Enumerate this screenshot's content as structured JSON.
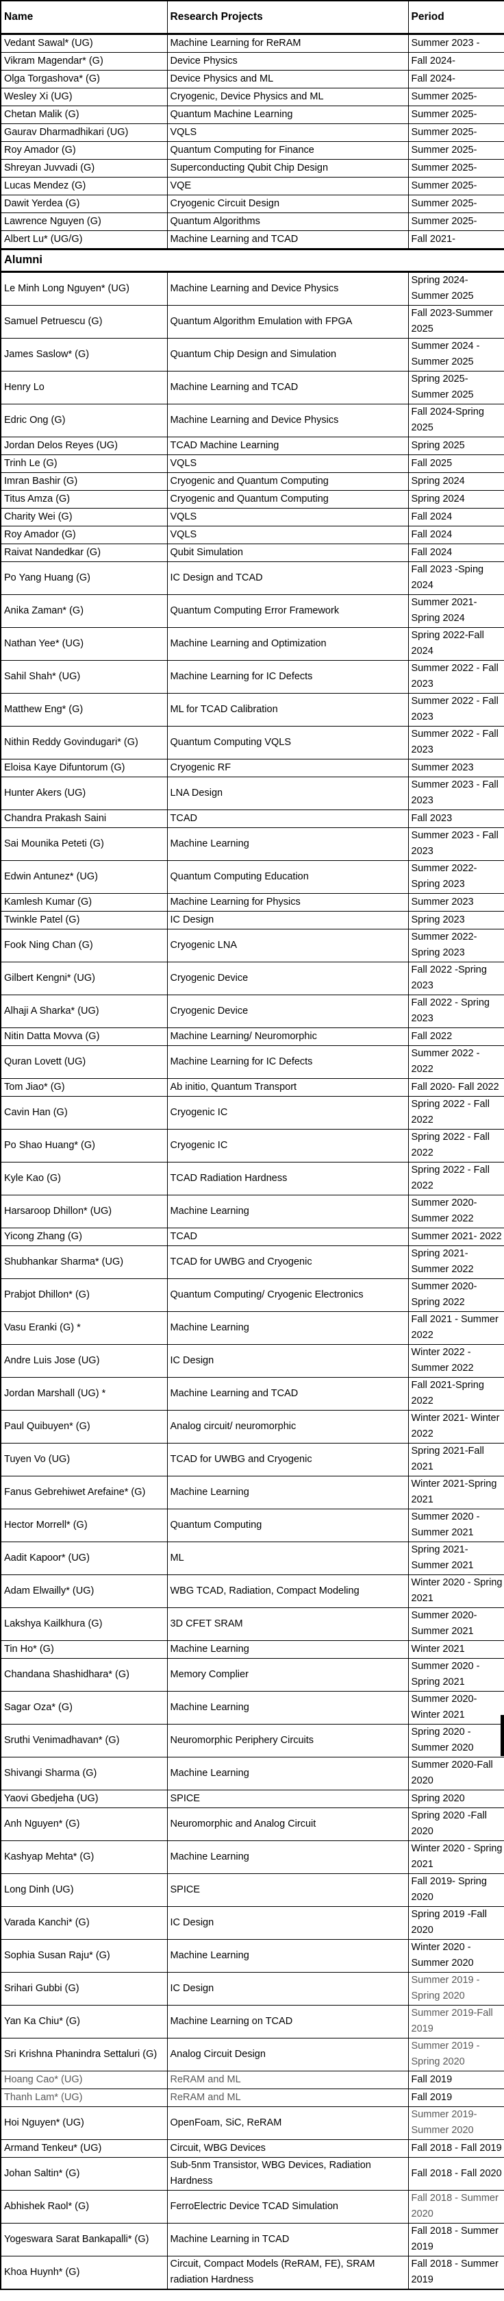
{
  "colors": {
    "text": "#000000",
    "muted_text": "#595959",
    "border": "#000000",
    "background": "#ffffff"
  },
  "table": {
    "headers": [
      "Name",
      "Research Projects",
      "Period"
    ],
    "section_label": "Alumni",
    "current_members": [
      {
        "name": "Vedant Sawal* (UG)",
        "project": "Machine Learning for ReRAM",
        "period": "Summer 2023 -"
      },
      {
        "name": "Vikram Magendar* (G)",
        "project": "Device Physics",
        "period": "Fall 2024-"
      },
      {
        "name": "Olga Torgashova* (G)",
        "project": "Device Physics and ML",
        "period": "Fall 2024-"
      },
      {
        "name": "Wesley Xi (UG)",
        "project": "Cryogenic, Device Physics and ML",
        "period": "Summer 2025-"
      },
      {
        "name": "Chetan Malik (G)",
        "project": "Quantum Machine Learning",
        "period": "Summer 2025-"
      },
      {
        "name": "Gaurav Dharmadhikari (UG)",
        "project": "VQLS",
        "period": "Summer 2025-"
      },
      {
        "name": "Roy Amador (G)",
        "project": "Quantum Computing for Finance",
        "period": "Summer 2025-"
      },
      {
        "name": "Shreyan Juvvadi (G)",
        "project": "Superconducting Qubit Chip Design",
        "period": "Summer 2025-"
      },
      {
        "name": "Lucas Mendez (G)",
        "project": "VQE",
        "period": "Summer 2025-"
      },
      {
        "name": "Dawit Yerdea (G)",
        "project": "Cryogenic Circuit Design",
        "period": "Summer 2025-"
      },
      {
        "name": "Lawrence Nguyen (G)",
        "project": "Quantum Algorithms",
        "period": "Summer 2025-"
      },
      {
        "name": "Albert Lu* (UG/G)",
        "project": "Machine Learning and TCAD",
        "period": "Fall 2021-"
      }
    ],
    "alumni": [
      {
        "name": "Le Minh Long Nguyen* (UG)",
        "project": "Machine Learning and Device Physics",
        "period": "Spring 2024-Summer 2025"
      },
      {
        "name": "Samuel Petruescu (G)",
        "project": "Quantum Algorithm Emulation with FPGA",
        "period": "Fall 2023-Summer 2025"
      },
      {
        "name": "James Saslow* (G)",
        "project": "Quantum Chip Design and Simulation",
        "period": "Summer 2024 - Summer 2025"
      },
      {
        "name": "Henry Lo",
        "project": "Machine Learning and TCAD",
        "period": "Spring 2025- Summer 2025"
      },
      {
        "name": "Edric Ong (G)",
        "project": "Machine Learning and Device Physics",
        "period": "Fall 2024-Spring 2025"
      },
      {
        "name": "Jordan Delos Reyes (UG)",
        "project": "TCAD Machine Learning",
        "period": "Spring 2025"
      },
      {
        "name": "Trinh Le (G)",
        "project": "VQLS",
        "period": "Fall 2025"
      },
      {
        "name": "Imran Bashir (G)",
        "project": "Cryogenic and Quantum Computing",
        "period": "Spring 2024"
      },
      {
        "name": "Titus Amza (G)",
        "project": "Cryogenic and Quantum Computing",
        "period": "Spring 2024"
      },
      {
        "name": "Charity Wei (G)",
        "project": "VQLS",
        "period": "Fall 2024"
      },
      {
        "name": "Roy Amador (G)",
        "project": "VQLS",
        "period": "Fall 2024"
      },
      {
        "name": "Raivat Nandedkar (G)",
        "project": "Qubit Simulation",
        "period": "Fall 2024"
      },
      {
        "name": "Po Yang Huang (G)",
        "project": "IC Design and TCAD",
        "period": "Fall 2023 -Sping 2024"
      },
      {
        "name": "Anika Zaman* (G)",
        "project": "Quantum Computing Error Framework",
        "period": "Summer 2021- Spring 2024"
      },
      {
        "name": "Nathan Yee* (UG)",
        "project": "Machine Learning and Optimization",
        "period": "Spring 2022-Fall 2024"
      },
      {
        "name": "Sahil Shah* (UG)",
        "project": "Machine Learning for IC Defects",
        "period": "Summer 2022 - Fall 2023"
      },
      {
        "name": "Matthew Eng* (G)",
        "project": "ML for TCAD Calibration",
        "period": "Summer 2022 - Fall 2023"
      },
      {
        "name": "Nithin Reddy Govindugari* (G)",
        "project": "Quantum Computing VQLS",
        "period": "Summer 2022 - Fall 2023"
      },
      {
        "name": "Eloisa Kaye Difuntorum (G)",
        "project": "Cryogenic RF",
        "period": "Summer 2023"
      },
      {
        "name": "Hunter Akers (UG)",
        "project": "LNA Design",
        "period": "Summer 2023 - Fall 2023"
      },
      {
        "name": "Chandra Prakash Saini",
        "project": "TCAD",
        "period": "Fall 2023"
      },
      {
        "name": "Sai Mounika Peteti (G)",
        "project": "Machine Learning",
        "period": "Summer 2023 - Fall 2023"
      },
      {
        "name": "Edwin Antunez* (UG)",
        "project": "Quantum Computing Education",
        "period": "Summer 2022- Spring 2023"
      },
      {
        "name": "Kamlesh Kumar (G)",
        "project": "Machine Learning for Physics",
        "period": "Summer 2023"
      },
      {
        "name": "Twinkle Patel (G)",
        "project": "IC Design",
        "period": "Spring 2023"
      },
      {
        "name": "Fook Ning Chan (G)",
        "project": "Cryogenic LNA",
        "period": "Summer 2022- Spring 2023"
      },
      {
        "name": "Gilbert Kengni* (UG)",
        "project": "Cryogenic Device",
        "period": "Fall 2022 -Spring 2023"
      },
      {
        "name": "Alhaji A Sharka* (UG)",
        "project": "Cryogenic Device",
        "period": "Fall 2022 - Spring 2023"
      },
      {
        "name": "Nitin Datta Movva (G)",
        "project": "Machine Learning/ Neuromorphic",
        "period": "Fall 2022"
      },
      {
        "name": "Quran Lovett (UG)",
        "project": "Machine Learning for IC Defects",
        "period": "Summer 2022 - 2022"
      },
      {
        "name": "Tom Jiao* (G)",
        "project": "Ab initio, Quantum Transport",
        "period": "Fall 2020- Fall 2022"
      },
      {
        "name": "Cavin Han (G)",
        "project": "Cryogenic IC",
        "period": "Spring 2022 - Fall 2022"
      },
      {
        "name": "Po Shao Huang* (G)",
        "project": "Cryogenic IC",
        "period": "Spring 2022 - Fall 2022"
      },
      {
        "name": "Kyle Kao (G)",
        "project": "TCAD Radiation Hardness",
        "period": "Spring 2022 - Fall 2022"
      },
      {
        "name": "Harsaroop Dhillon* (UG)",
        "project": "Machine Learning",
        "period": "Summer 2020- Summer 2022"
      },
      {
        "name": "Yicong Zhang (G)",
        "project": "TCAD",
        "period": "Summer 2021- 2022"
      },
      {
        "name": "Shubhankar Sharma* (UG)",
        "project": "TCAD for UWBG and Cryogenic",
        "period": "Spring 2021- Summer 2022"
      },
      {
        "name": "Prabjot Dhillon* (G)",
        "project": "Quantum Computing/ Cryogenic Electronics",
        "period": "Summer 2020- Spring 2022"
      },
      {
        "name": "Vasu Eranki (G) *",
        "project": "Machine Learning",
        "period": "Fall 2021 - Summer 2022"
      },
      {
        "name": "Andre Luis Jose (UG)",
        "project": "IC Design",
        "period": "Winter 2022 - Summer 2022"
      },
      {
        "name": "Jordan Marshall (UG) *",
        "project": "Machine Learning and TCAD",
        "period": "Fall 2021-Spring 2022"
      },
      {
        "name": "Paul Quibuyen* (G)",
        "project": "Analog circuit/ neuromorphic",
        "period": "Winter 2021- Winter 2022"
      },
      {
        "name": "Tuyen Vo (UG)",
        "project": "TCAD for UWBG and Cryogenic",
        "period": "Spring 2021-Fall 2021"
      },
      {
        "name": "Fanus Gebrehiwet Arefaine* (G)",
        "project": "Machine Learning",
        "period": "Winter 2021-Spring 2021"
      },
      {
        "name": "Hector Morrell* (G)",
        "project": "Quantum Computing",
        "period": "Summer 2020 - Summer 2021"
      },
      {
        "name": "Aadit Kapoor* (UG)",
        "project": "ML",
        "period": "Spring 2021- Summer 2021"
      },
      {
        "name": "Adam Elwailly* (UG)",
        "project": "WBG TCAD, Radiation, Compact Modeling",
        "period": "Winter 2020 - Spring 2021"
      },
      {
        "name": "Lakshya Kailkhura (G)",
        "project": "3D CFET SRAM",
        "period": "Summer 2020- Summer 2021"
      },
      {
        "name": "Tin Ho* (G)",
        "project": "Machine Learning",
        "period": "Winter 2021"
      },
      {
        "name": "Chandana Shashidhara* (G)",
        "project": "Memory Complier",
        "period": "Summer 2020 - Spring 2021"
      },
      {
        "name": "Sagar Oza* (G)",
        "project": "Machine Learning",
        "period": "Summer 2020- Winter 2021"
      },
      {
        "name": "Sruthi Venimadhavan* (G)",
        "project": "Neuromorphic Periphery Circuits",
        "period": "Spring 2020 - Summer 2020"
      },
      {
        "name": "Shivangi Sharma (G)",
        "project": "Machine Learning",
        "period": "Summer 2020-Fall 2020"
      },
      {
        "name": "Yaovi Gbedjeha (UG)",
        "project": "SPICE",
        "period": "Spring 2020"
      },
      {
        "name": "Anh Nguyen* (G)",
        "project": "Neuromorphic and Analog Circuit",
        "period": "Spring 2020 -Fall 2020"
      },
      {
        "name": "Kashyap Mehta* (G)",
        "project": "Machine Learning",
        "period": "Winter 2020 - Spring 2021"
      },
      {
        "name": "Long Dinh (UG)",
        "project": "SPICE",
        "period": "Fall 2019- Spring 2020"
      },
      {
        "name": "Varada Kanchi* (G)",
        "project": "IC Design",
        "period": "Spring 2019 -Fall 2020"
      },
      {
        "name": "Sophia Susan Raju* (G)",
        "project": "Machine Learning",
        "period": "Winter 2020 - Summer 2020"
      },
      {
        "name": "Srihari Gubbi (G)",
        "project": "IC Design",
        "period": "Summer 2019 - Spring 2020",
        "muted": [
          "period"
        ]
      },
      {
        "name": "Yan Ka Chiu* (G)",
        "project": "Machine Learning on TCAD",
        "period": "Summer 2019-Fall 2019",
        "muted": [
          "period"
        ]
      },
      {
        "name": "Sri Krishna Phanindra Settaluri (G)",
        "project": "Analog Circuit Design",
        "period": "Summer 2019 - Spring 2020",
        "muted": [
          "period"
        ]
      },
      {
        "name": "Hoang Cao* (UG)",
        "project": "ReRAM and ML",
        "period": "Fall 2019",
        "muted": [
          "name",
          "project"
        ]
      },
      {
        "name": "Thanh Lam* (UG)",
        "project": "ReRAM and ML",
        "period": "Fall 2019",
        "muted": [
          "name",
          "project"
        ]
      },
      {
        "name": "Hoi Nguyen* (UG)",
        "project": "OpenFoam, SiC, ReRAM",
        "period": "Summer 2019- Summer 2020",
        "muted": [
          "period"
        ]
      },
      {
        "name": "Armand Tenkeu* (UG)",
        "project": "Circuit, WBG Devices",
        "period": "Fall 2018 - Fall 2019"
      },
      {
        "name": "Johan Saltin* (G)",
        "project": "Sub-5nm Transistor, WBG Devices, Radiation Hardness",
        "period": "Fall 2018 - Fall 2020"
      },
      {
        "name": "Abhishek Raol* (G)",
        "project": "FerroElectric Device TCAD Simulation",
        "period": "Fall 2018 - Summer 2020",
        "muted": [
          "period"
        ]
      },
      {
        "name": "Yogeswara Sarat Bankapalli* (G)",
        "project": "Machine Learning in TCAD",
        "period": "Fall 2018 - Summer 2019"
      },
      {
        "name": "Khoa Huynh* (G)",
        "project": "Circuit, Compact Models (ReRAM, FE), SRAM radiation Hardness",
        "period": "Fall 2018 - Summer 2019"
      }
    ]
  }
}
